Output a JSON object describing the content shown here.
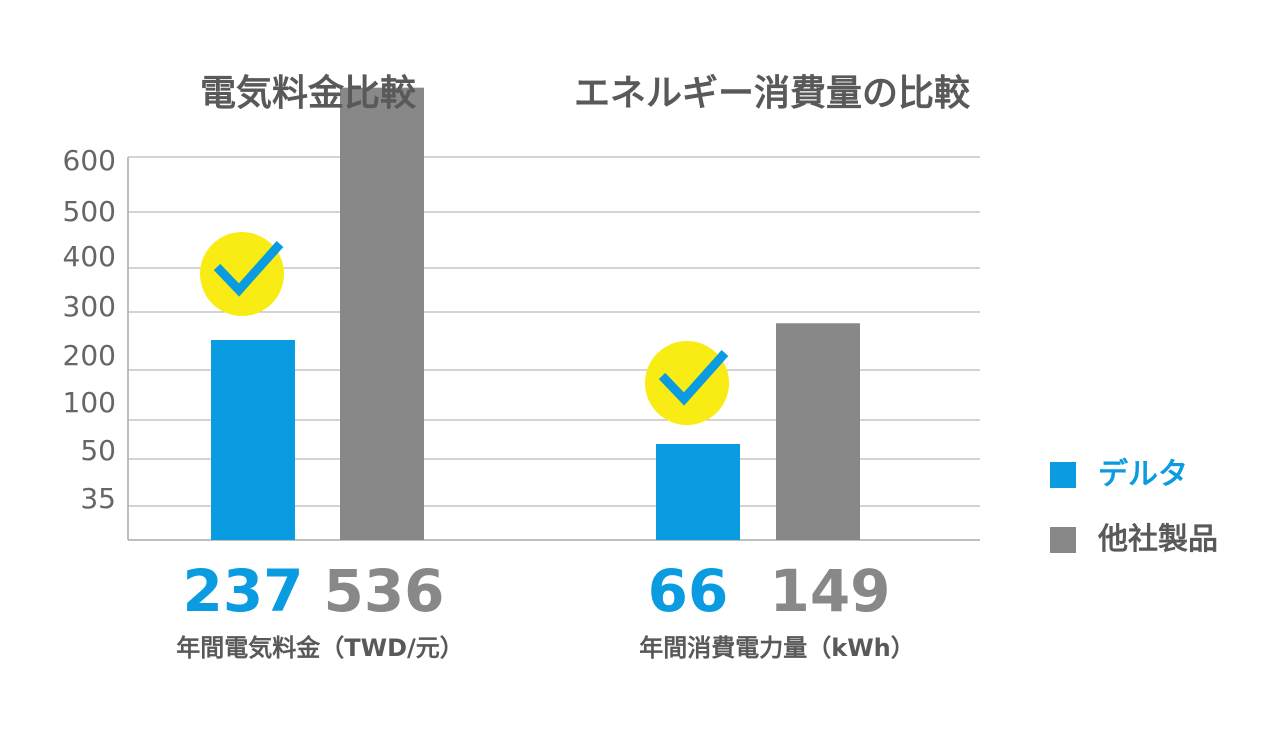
{
  "colors": {
    "delta": "#0B9BE0",
    "other": "#888888",
    "check_bg": "#F8EC14",
    "grid": "#AAAAAA",
    "text": "#595959"
  },
  "chart_data": [
    {
      "type": "bar",
      "title": "電気料金比較",
      "categories": [
        "年間電気料金（TWD/元）"
      ],
      "series": [
        {
          "name": "デルタ",
          "values": [
            237
          ]
        },
        {
          "name": "他社製品",
          "values": [
            536
          ]
        }
      ],
      "y_tick_labels": [
        "600",
        "500",
        "400",
        "300",
        "200",
        "100",
        "50",
        "35"
      ],
      "value_labels": [
        "237",
        "536"
      ],
      "caption": "年間電気料金（TWD/元）",
      "highlight_icon": "check-icon"
    },
    {
      "type": "bar",
      "title": "エネルギー消費量の比較",
      "categories": [
        "年間消費電力量（kWh）"
      ],
      "series": [
        {
          "name": "デルタ",
          "values": [
            66
          ]
        },
        {
          "name": "他社製品",
          "values": [
            149
          ]
        }
      ],
      "value_labels": [
        "66",
        "149"
      ],
      "caption": "年間消費電力量（kWh）",
      "highlight_icon": "check-icon"
    }
  ],
  "legend": [
    {
      "label": "デルタ",
      "color": "#0B9BE0"
    },
    {
      "label": "他社製品",
      "color": "#888888"
    }
  ]
}
